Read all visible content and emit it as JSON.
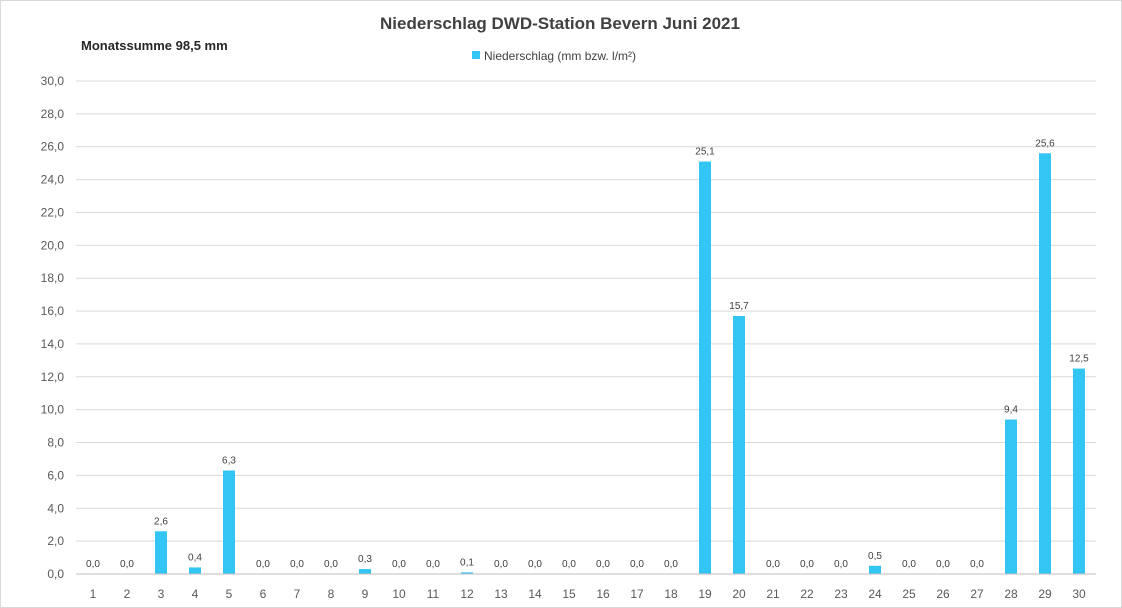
{
  "chart_data": {
    "type": "bar",
    "title": "Niederschlag DWD-Station Bevern Juni 2021",
    "annotation": "Monatssumme 98,5 mm",
    "xlabel": "",
    "ylabel": "",
    "ylim": [
      0,
      30
    ],
    "y_ticks": [
      "0,0",
      "2,0",
      "4,0",
      "6,0",
      "8,0",
      "10,0",
      "12,0",
      "14,0",
      "16,0",
      "18,0",
      "20,0",
      "22,0",
      "24,0",
      "26,0",
      "28,0",
      "30,0"
    ],
    "grid": true,
    "legend_position": "top-center",
    "categories": [
      "1",
      "2",
      "3",
      "4",
      "5",
      "6",
      "7",
      "8",
      "9",
      "10",
      "11",
      "12",
      "13",
      "14",
      "15",
      "16",
      "17",
      "18",
      "19",
      "20",
      "21",
      "22",
      "23",
      "24",
      "25",
      "26",
      "27",
      "28",
      "29",
      "30"
    ],
    "series": [
      {
        "name": "Niederschlag (mm bzw. l/m²)",
        "color": "#33c5f3",
        "values": [
          0.0,
          0.0,
          2.6,
          0.4,
          6.3,
          0.0,
          0.0,
          0.0,
          0.3,
          0.0,
          0.0,
          0.1,
          0.0,
          0.0,
          0.0,
          0.0,
          0.0,
          0.0,
          25.1,
          15.7,
          0.0,
          0.0,
          0.0,
          0.5,
          0.0,
          0.0,
          0.0,
          9.4,
          25.6,
          12.5
        ],
        "data_labels": [
          "0,0",
          "0,0",
          "2,6",
          "0,4",
          "6,3",
          "0,0",
          "0,0",
          "0,0",
          "0,3",
          "0,0",
          "0,0",
          "0,1",
          "0,0",
          "0,0",
          "0,0",
          "0,0",
          "0,0",
          "0,0",
          "25,1",
          "15,7",
          "0,0",
          "0,0",
          "0,0",
          "0,5",
          "0,0",
          "0,0",
          "0,0",
          "9,4",
          "25,6",
          "12,5"
        ]
      }
    ]
  }
}
